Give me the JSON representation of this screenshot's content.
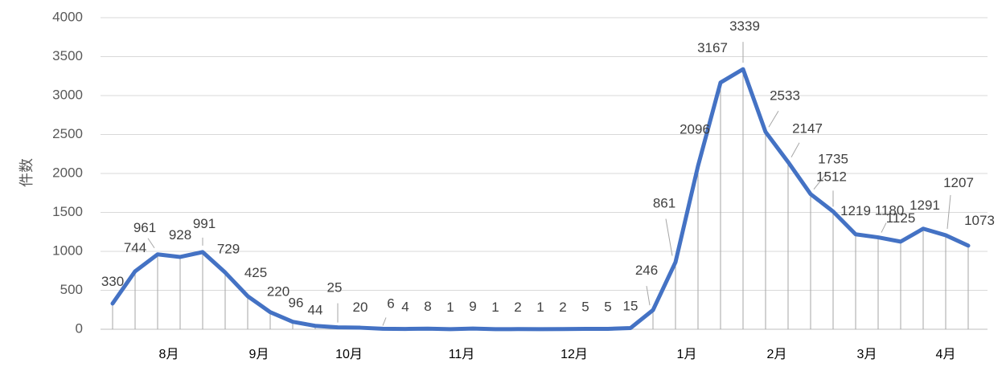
{
  "chart_data": {
    "type": "line",
    "title": "",
    "xlabel": "",
    "ylabel": "件数",
    "ylim": [
      0,
      4000
    ],
    "yticks": [
      0,
      500,
      1000,
      1500,
      2000,
      2500,
      3000,
      3500,
      4000
    ],
    "grid": true,
    "legend": "none",
    "x_month_labels": [
      {
        "index": 2.5,
        "label": "8月"
      },
      {
        "index": 6.5,
        "label": "9月"
      },
      {
        "index": 10.5,
        "label": "10月"
      },
      {
        "index": 15.5,
        "label": "11月"
      },
      {
        "index": 20.5,
        "label": "12月"
      },
      {
        "index": 25.5,
        "label": "1月"
      },
      {
        "index": 29.5,
        "label": "2月"
      },
      {
        "index": 33.5,
        "label": "3月"
      },
      {
        "index": 37,
        "label": "4月"
      }
    ],
    "series": [
      {
        "values": [
          330,
          744,
          961,
          928,
          991,
          729,
          425,
          220,
          96,
          44,
          25,
          20,
          6,
          4,
          8,
          1,
          9,
          1,
          2,
          1,
          2,
          5,
          5,
          15,
          246,
          861,
          2096,
          3167,
          3339,
          2533,
          2147,
          1735,
          1512,
          1219,
          1180,
          1125,
          1291,
          1207,
          1073
        ],
        "color": "#4472C4"
      }
    ]
  }
}
